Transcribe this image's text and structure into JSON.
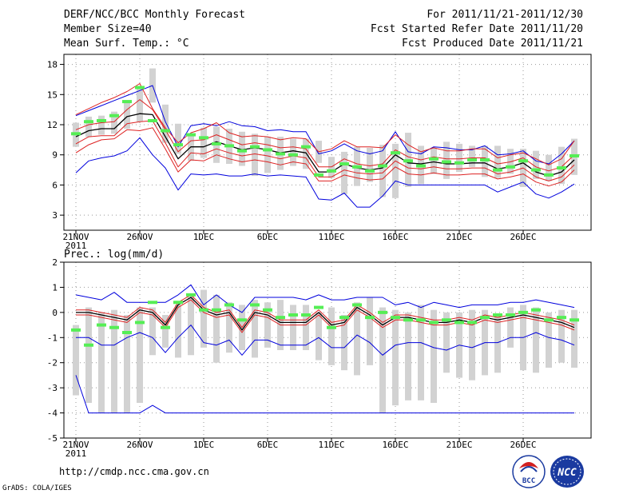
{
  "header": {
    "title": "DERF/NCC/BCC Monthly Forecast",
    "member_size": "Member Size=40",
    "variable": "Mean Surf. Temp.: °C",
    "period": "For 2011/11/21-2011/12/30",
    "fcst_started": "Fcst Started Refer Date 2011/11/20",
    "fcst_produced": "Fcst Produced Date 2011/11/21"
  },
  "footer": {
    "url": "http://cmdp.ncc.cma.gov.cn",
    "grads": "GrADS: COLA/IGES",
    "logo_bcc": "BCC",
    "logo_ncc": "NCC"
  },
  "colors": {
    "box": "#d2d2d2",
    "median": "#55ee55",
    "ens_mean": "#000000",
    "band_inner": "#dd2222",
    "band_outer": "#0000dd",
    "grid": "#999999"
  },
  "chart_data": [
    {
      "type": "box-and-line",
      "title": "Mean Surf. Temp.: °C",
      "ylabel": "",
      "ylim": [
        1.5,
        19
      ],
      "yticks": [
        3,
        6,
        9,
        12,
        15,
        18
      ],
      "x_tick_labels": [
        "21NOV",
        "26NOV",
        "1DEC",
        "6DEC",
        "11DEC",
        "16DEC",
        "21DEC",
        "26DEC"
      ],
      "x_year_label": "2011",
      "days": 40,
      "box_low": [
        9.8,
        10.8,
        11.0,
        11.1,
        11.6,
        12.3,
        14.2,
        10.2,
        9.1,
        8.4,
        8.7,
        8.2,
        8.1,
        7.9,
        6.9,
        7.2,
        7.5,
        7.9,
        7.6,
        8.2,
        6.7,
        5.1,
        5.9,
        6.3,
        4.8,
        4.7,
        5.8,
        6.1,
        7.1,
        6.6,
        7.3,
        7.8,
        6.8,
        6.7,
        7.1,
        5.8,
        6.6,
        6.4,
        6.1,
        7.0
      ],
      "box_high": [
        12.2,
        12.8,
        12.9,
        13.3,
        14.3,
        15.6,
        17.6,
        14.0,
        12.1,
        10.9,
        11.7,
        11.8,
        11.6,
        11.3,
        11.1,
        10.8,
        10.8,
        10.6,
        10.6,
        10.4,
        8.8,
        9.3,
        9.8,
        9.7,
        10.0,
        10.1,
        11.2,
        9.9,
        9.7,
        10.3,
        10.1,
        9.9,
        9.9,
        9.9,
        9.6,
        9.6,
        9.4,
        9.0,
        9.8,
        10.6
      ],
      "median": [
        11.1,
        12.3,
        12.4,
        12.9,
        14.3,
        15.7,
        12.4,
        11.4,
        10.0,
        11.0,
        10.7,
        10.1,
        9.9,
        9.4,
        9.8,
        9.5,
        9.1,
        9.0,
        9.8,
        7.0,
        7.4,
        8.1,
        7.8,
        7.4,
        7.9,
        9.2,
        8.4,
        7.9,
        8.6,
        8.3,
        8.2,
        8.5,
        8.5,
        7.5,
        7.8,
        8.4,
        7.5,
        7.0,
        7.7,
        8.9
      ],
      "series": [
        {
          "name": "ens_max",
          "values": [
            13.0,
            13.6,
            14.2,
            14.7,
            15.3,
            16.1,
            13.6,
            11.7,
            10.2,
            11.2,
            11.6,
            12.2,
            11.2,
            10.8,
            10.9,
            10.8,
            10.5,
            10.7,
            10.6,
            9.3,
            9.6,
            10.4,
            9.8,
            9.8,
            9.7,
            11.0,
            10.0,
            9.3,
            9.7,
            9.4,
            9.4,
            9.6,
            9.6,
            8.7,
            9.0,
            9.2,
            8.6,
            8.0,
            8.6,
            10.4
          ]
        },
        {
          "name": "ens_p75",
          "values": [
            11.5,
            12.0,
            12.2,
            12.3,
            13.5,
            14.5,
            13.5,
            11.5,
            9.3,
            10.4,
            10.5,
            11.0,
            10.5,
            10.0,
            10.2,
            10.0,
            9.7,
            9.8,
            9.6,
            7.8,
            7.8,
            8.6,
            8.1,
            7.9,
            8.1,
            9.5,
            8.8,
            8.5,
            8.8,
            8.6,
            8.6,
            8.7,
            8.7,
            8.1,
            8.3,
            8.7,
            7.8,
            7.4,
            7.8,
            9.0
          ]
        },
        {
          "name": "ens_mean",
          "values": [
            10.8,
            11.4,
            11.6,
            11.6,
            12.8,
            13.1,
            13.0,
            10.8,
            8.6,
            9.8,
            9.8,
            10.3,
            9.9,
            9.5,
            9.7,
            9.5,
            9.2,
            9.4,
            9.2,
            7.3,
            7.3,
            8.1,
            7.7,
            7.5,
            7.7,
            9.0,
            8.2,
            8.1,
            8.3,
            8.1,
            8.1,
            8.2,
            8.2,
            7.6,
            7.8,
            8.2,
            7.3,
            6.9,
            7.3,
            8.5
          ]
        },
        {
          "name": "ens_p25",
          "values": [
            10.1,
            10.8,
            10.9,
            10.9,
            12.1,
            12.3,
            12.4,
            10.2,
            7.8,
            9.2,
            9.1,
            9.6,
            9.2,
            8.9,
            9.1,
            8.9,
            8.6,
            8.9,
            8.7,
            6.8,
            6.8,
            7.5,
            7.2,
            7.1,
            7.2,
            8.4,
            7.7,
            7.6,
            7.8,
            7.6,
            7.6,
            7.7,
            7.7,
            7.1,
            7.3,
            7.7,
            6.8,
            6.4,
            6.8,
            8.0
          ]
        },
        {
          "name": "ens_min",
          "values": [
            9.2,
            10.0,
            10.5,
            10.6,
            11.5,
            11.4,
            11.7,
            9.6,
            7.3,
            8.5,
            8.4,
            9.0,
            8.6,
            8.3,
            8.5,
            8.3,
            8.0,
            8.3,
            8.1,
            6.4,
            6.4,
            7.0,
            6.7,
            6.5,
            6.6,
            7.8,
            7.1,
            7.0,
            7.2,
            7.0,
            7.0,
            7.1,
            7.1,
            6.6,
            6.8,
            7.1,
            6.3,
            5.9,
            6.3,
            7.5
          ]
        }
      ],
      "bounds": [
        {
          "name": "upper_limit",
          "values": [
            12.9,
            13.4,
            13.9,
            14.4,
            14.9,
            15.4,
            15.9,
            12.3,
            9.8,
            11.9,
            12.1,
            11.9,
            12.3,
            11.9,
            11.8,
            11.4,
            11.5,
            11.3,
            11.3,
            9.1,
            9.4,
            10.1,
            9.4,
            9.1,
            9.4,
            11.3,
            9.3,
            9.1,
            9.8,
            9.7,
            9.5,
            9.5,
            9.9,
            9.0,
            9.1,
            9.4,
            8.4,
            8.1,
            9.1,
            10.4
          ]
        },
        {
          "name": "lower_limit",
          "values": [
            7.2,
            8.4,
            8.7,
            8.9,
            9.4,
            10.7,
            9.0,
            7.7,
            5.5,
            7.1,
            7.0,
            7.1,
            6.9,
            6.9,
            7.1,
            6.9,
            7.0,
            6.9,
            6.8,
            4.6,
            4.5,
            5.2,
            3.8,
            3.8,
            4.9,
            6.4,
            6.0,
            6.0,
            6.0,
            6.0,
            6.0,
            6.0,
            6.0,
            5.3,
            5.8,
            6.3,
            5.1,
            4.7,
            5.3,
            6.1
          ]
        }
      ]
    },
    {
      "type": "box-and-line",
      "title": "Prec.: log(mm/d)",
      "ylabel": "",
      "ylim": [
        -5,
        2
      ],
      "yticks": [
        -5,
        -4,
        -3,
        -2,
        -1,
        0,
        1,
        2
      ],
      "x_tick_labels": [
        "21NOV",
        "26NOV",
        "1DEC",
        "6DEC",
        "11DEC",
        "16DEC",
        "21DEC",
        "26DEC"
      ],
      "x_year_label": "2011",
      "days": 40,
      "box_low": [
        -3.3,
        -3.6,
        -4.0,
        -4.0,
        -4.0,
        -3.6,
        -1.7,
        -1.4,
        -1.8,
        -1.7,
        -1.4,
        -2.0,
        -1.6,
        -1.5,
        -1.8,
        -1.4,
        -1.5,
        -1.5,
        -1.5,
        -1.9,
        -2.1,
        -2.3,
        -2.5,
        -2.1,
        -4.0,
        -3.7,
        -3.5,
        -3.5,
        -3.6,
        -2.4,
        -2.6,
        -2.7,
        -2.5,
        -2.4,
        -1.4,
        -2.3,
        -2.4,
        -2.2,
        -2.0,
        -2.2
      ],
      "box_high": [
        -0.5,
        0.2,
        0.0,
        0.1,
        -0.1,
        0.2,
        0.2,
        -0.1,
        0.3,
        0.7,
        0.9,
        0.7,
        0.4,
        0.3,
        0.5,
        0.4,
        0.5,
        0.3,
        0.3,
        0.0,
        0.2,
        -0.1,
        0.4,
        0.6,
        0.2,
        0.1,
        0.0,
        0.3,
        0.1,
        0.0,
        0.0,
        0.1,
        0.1,
        -0.1,
        0.2,
        0.3,
        0.2,
        0.0,
        0.1,
        0.1
      ],
      "median": [
        -0.7,
        -1.3,
        -0.5,
        -0.6,
        -0.8,
        -0.4,
        0.4,
        -0.6,
        0.4,
        0.7,
        0.1,
        0.1,
        0.3,
        -0.3,
        0.3,
        0.1,
        -0.2,
        -0.1,
        -0.1,
        0.2,
        -0.6,
        -0.2,
        0.3,
        -0.2,
        0.0,
        -0.2,
        -0.3,
        -0.3,
        -0.4,
        -0.3,
        -0.4,
        -0.4,
        -0.2,
        -0.1,
        -0.1,
        0.0,
        0.1,
        -0.3,
        -0.2,
        -0.3
      ],
      "series": [
        {
          "name": "ens_max",
          "values": [
            0.1,
            0.1,
            0.0,
            -0.1,
            -0.2,
            0.2,
            0.1,
            -0.4,
            0.4,
            0.7,
            0.2,
            0.0,
            0.1,
            -0.6,
            0.1,
            0.0,
            -0.3,
            -0.3,
            -0.3,
            0.1,
            -0.4,
            -0.3,
            0.3,
            0.0,
            -0.4,
            -0.1,
            -0.1,
            -0.2,
            -0.3,
            -0.3,
            -0.2,
            -0.3,
            -0.1,
            -0.2,
            -0.1,
            0.0,
            -0.1,
            -0.2,
            -0.3,
            -0.5
          ]
        },
        {
          "name": "ens_mean",
          "values": [
            0.0,
            0.0,
            -0.1,
            -0.2,
            -0.3,
            0.1,
            0.0,
            -0.5,
            0.3,
            0.6,
            0.1,
            -0.1,
            0.0,
            -0.7,
            0.0,
            -0.1,
            -0.4,
            -0.4,
            -0.4,
            0.0,
            -0.5,
            -0.4,
            0.2,
            -0.1,
            -0.5,
            -0.2,
            -0.2,
            -0.3,
            -0.4,
            -0.4,
            -0.3,
            -0.4,
            -0.2,
            -0.3,
            -0.2,
            -0.1,
            -0.2,
            -0.3,
            -0.4,
            -0.6
          ]
        },
        {
          "name": "ens_min",
          "values": [
            -0.1,
            -0.1,
            -0.2,
            -0.3,
            -0.4,
            0.0,
            -0.1,
            -0.6,
            0.2,
            0.5,
            0.0,
            -0.2,
            -0.1,
            -0.8,
            -0.1,
            -0.2,
            -0.5,
            -0.5,
            -0.5,
            -0.1,
            -0.6,
            -0.5,
            0.1,
            -0.2,
            -0.6,
            -0.3,
            -0.3,
            -0.4,
            -0.5,
            -0.5,
            -0.4,
            -0.5,
            -0.3,
            -0.4,
            -0.3,
            -0.2,
            -0.3,
            -0.4,
            -0.5,
            -0.7
          ]
        }
      ],
      "bounds": [
        {
          "name": "upper_limit",
          "values": [
            0.7,
            0.6,
            0.5,
            0.8,
            0.4,
            0.4,
            0.4,
            0.4,
            0.7,
            1.1,
            0.3,
            0.7,
            0.3,
            0.0,
            0.6,
            0.6,
            0.6,
            0.6,
            0.5,
            0.7,
            0.5,
            0.5,
            0.6,
            0.6,
            0.6,
            0.3,
            0.4,
            0.2,
            0.4,
            0.3,
            0.2,
            0.3,
            0.3,
            0.3,
            0.4,
            0.4,
            0.5,
            0.4,
            0.3,
            0.2
          ]
        },
        {
          "name": "lower_limit",
          "values": [
            -1.0,
            -1.0,
            -1.3,
            -1.3,
            -1.0,
            -0.8,
            -1.0,
            -1.6,
            -1.0,
            -0.5,
            -1.2,
            -1.3,
            -1.1,
            -1.7,
            -1.1,
            -1.1,
            -1.3,
            -1.3,
            -1.3,
            -1.0,
            -1.4,
            -1.4,
            -0.9,
            -1.2,
            -1.7,
            -1.3,
            -1.2,
            -1.2,
            -1.4,
            -1.5,
            -1.3,
            -1.4,
            -1.2,
            -1.2,
            -1.0,
            -1.0,
            -0.8,
            -1.0,
            -1.1,
            -1.3
          ]
        },
        {
          "name": "min_limit",
          "values": [
            -2.5,
            -4.0,
            -4.0,
            -4.0,
            -4.0,
            -4.0,
            -3.7,
            -4.0,
            -4.0,
            -4.0,
            -4.0,
            -4.0,
            -4.0,
            -4.0,
            -4.0,
            -4.0,
            -4.0,
            -4.0,
            -4.0,
            -4.0,
            -4.0,
            -4.0,
            -4.0,
            -4.0,
            -4.0,
            -4.0,
            -4.0,
            -4.0,
            -4.0,
            -4.0,
            -4.0,
            -4.0,
            -4.0,
            -4.0,
            -4.0,
            -4.0,
            -4.0,
            -4.0,
            -4.0,
            -4.0
          ]
        }
      ]
    }
  ]
}
